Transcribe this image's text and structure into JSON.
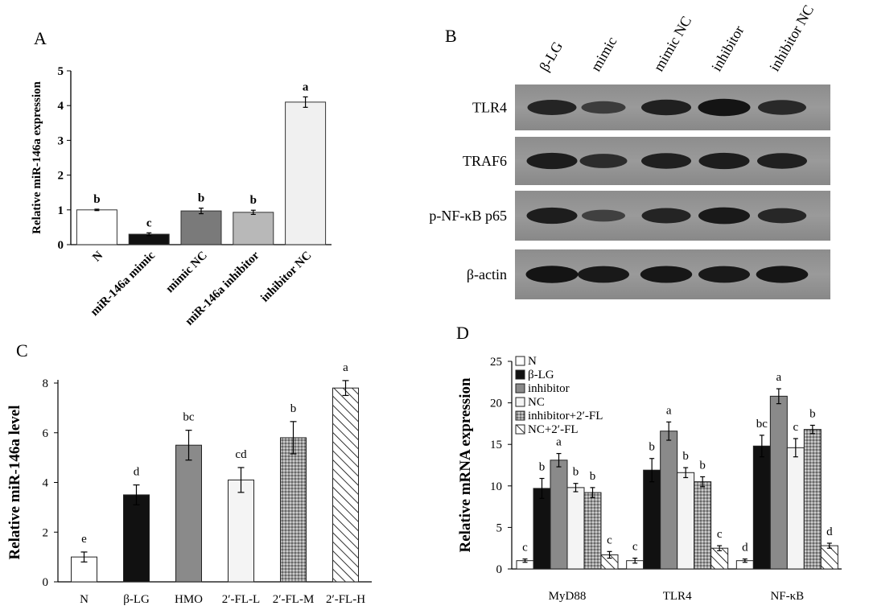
{
  "chart_data": [
    {
      "type": "bar",
      "panel": "A",
      "ylabel": "Relative miR-146a expression",
      "ylim": [
        0,
        5
      ],
      "yticks": [
        "0",
        "1",
        "2",
        "3",
        "4",
        "5"
      ],
      "categories": [
        "N",
        "miR-146a mimic",
        "mimic NC",
        "miR-146a inhibitor",
        "inhibitor NC"
      ],
      "values": [
        1.0,
        0.3,
        0.97,
        0.93,
        4.1
      ],
      "errors": [
        0.02,
        0.04,
        0.08,
        0.06,
        0.15
      ],
      "letters": [
        "b",
        "c",
        "b",
        "b",
        "a"
      ],
      "colors": [
        "#ffffff",
        "#111111",
        "#7a7a7a",
        "#b8b8b8",
        "#f0f0f0"
      ]
    },
    {
      "type": "western-blot",
      "panel": "B",
      "lanes": [
        "β-LG",
        "mimic",
        "mimic NC",
        "inhibitor",
        "inhibitor NC"
      ],
      "rows": [
        {
          "label": "TLR4",
          "intensity": [
            0.75,
            0.45,
            0.8,
            0.95,
            0.7
          ]
        },
        {
          "label": "TRAF6",
          "intensity": [
            0.85,
            0.65,
            0.8,
            0.85,
            0.8
          ]
        },
        {
          "label": "p-NF-κB p65",
          "intensity": [
            0.85,
            0.4,
            0.75,
            0.9,
            0.72
          ]
        },
        {
          "label": "β-actin",
          "intensity": [
            0.95,
            0.9,
            0.92,
            0.9,
            0.93
          ]
        }
      ]
    },
    {
      "type": "bar",
      "panel": "C",
      "ylabel": "Relative miR-146a  level",
      "ylim": [
        0,
        8
      ],
      "yticks": [
        "0",
        "2",
        "4",
        "6",
        "8"
      ],
      "categories": [
        "N",
        "β-LG",
        "HMO",
        "2′-FL-L",
        "2′-FL-M",
        "2′-FL-H"
      ],
      "values": [
        1.0,
        3.5,
        5.5,
        4.1,
        5.8,
        7.8
      ],
      "errors": [
        0.2,
        0.4,
        0.6,
        0.5,
        0.65,
        0.3
      ],
      "letters": [
        "e",
        "d",
        "bc",
        "cd",
        "b",
        "a"
      ],
      "fills": [
        "white",
        "black",
        "gray",
        "light",
        "dots",
        "hatch"
      ]
    },
    {
      "type": "bar",
      "panel": "D",
      "ylabel": "Relative mRNA expression",
      "ylim": [
        0,
        25
      ],
      "yticks": [
        "0",
        "5",
        "10",
        "15",
        "20",
        "25"
      ],
      "categories": [
        "MyD88",
        "TLR4",
        "NF-κB"
      ],
      "series": [
        {
          "name": "N",
          "fill": "white",
          "values": [
            1.0,
            1.0,
            1.0
          ],
          "errors": [
            0.2,
            0.3,
            0.2
          ],
          "letters": [
            "c",
            "c",
            "d"
          ]
        },
        {
          "name": "β-LG",
          "fill": "black",
          "values": [
            9.7,
            11.9,
            14.8
          ],
          "errors": [
            1.2,
            1.4,
            1.3
          ],
          "letters": [
            "b",
            "b",
            "bc"
          ]
        },
        {
          "name": "inhibitor",
          "fill": "gray",
          "values": [
            13.1,
            16.6,
            20.8
          ],
          "errors": [
            0.8,
            1.1,
            0.9
          ],
          "letters": [
            "a",
            "a",
            "a"
          ]
        },
        {
          "name": "NC",
          "fill": "light",
          "values": [
            9.8,
            11.6,
            14.6
          ],
          "errors": [
            0.5,
            0.6,
            1.1
          ],
          "letters": [
            "b",
            "b",
            "c"
          ]
        },
        {
          "name": "inhibitor+2′-FL",
          "fill": "dots",
          "values": [
            9.2,
            10.5,
            16.8
          ],
          "errors": [
            0.6,
            0.6,
            0.5
          ],
          "letters": [
            "b",
            "b",
            "b"
          ]
        },
        {
          "name": "NC+2′-FL",
          "fill": "hatch",
          "values": [
            1.7,
            2.5,
            2.8
          ],
          "errors": [
            0.4,
            0.3,
            0.3
          ],
          "letters": [
            "c",
            "c",
            "d"
          ]
        }
      ]
    }
  ]
}
